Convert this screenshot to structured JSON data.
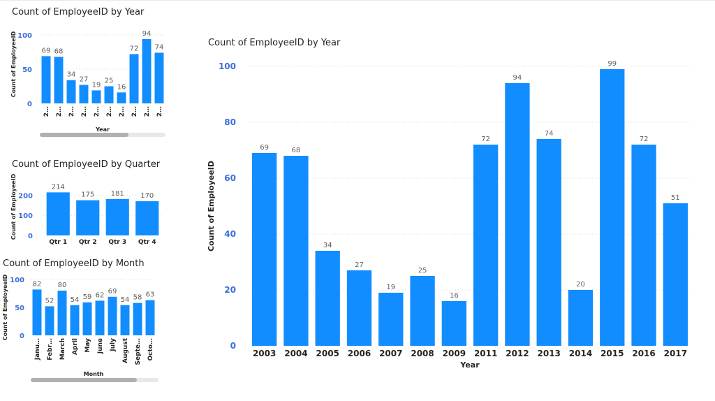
{
  "chart_data": [
    {
      "type": "bar",
      "title": "Count of EmployeeID by Year",
      "xlabel": "Year",
      "ylabel": "Count of EmployeeID",
      "ylim": [
        0,
        100
      ],
      "yticks": [
        0,
        50,
        100
      ],
      "categories": [
        "2…",
        "2…",
        "2…",
        "2…",
        "2…",
        "2…",
        "2…",
        "2…",
        "2…",
        "2…"
      ],
      "values": [
        69,
        68,
        34,
        27,
        19,
        25,
        16,
        72,
        94,
        74
      ],
      "grid": true,
      "scrollbar_position": 0.7
    },
    {
      "type": "bar",
      "title": "Count of EmployeeID by Quarter",
      "xlabel": "",
      "ylabel": "Count of EmployeeID",
      "ylim": [
        0,
        250
      ],
      "yticks": [
        0,
        100,
        200
      ],
      "categories": [
        "Qtr 1",
        "Qtr 2",
        "Qtr 3",
        "Qtr 4"
      ],
      "values": [
        214,
        175,
        181,
        170
      ],
      "grid": true
    },
    {
      "type": "bar",
      "title": "Count of EmployeeID by Month",
      "xlabel": "Month",
      "ylabel": "Count of EmployeeID",
      "ylim": [
        0,
        100
      ],
      "yticks": [
        0,
        50,
        100
      ],
      "categories": [
        "Janu…",
        "Febr…",
        "March",
        "April",
        "May",
        "June",
        "July",
        "August",
        "Septe…",
        "Octo…"
      ],
      "values": [
        82,
        52,
        80,
        54,
        59,
        62,
        69,
        54,
        58,
        63
      ],
      "grid": true,
      "scrollbar_position": 0.83
    },
    {
      "type": "bar",
      "title": "Count of EmployeeID by Year",
      "xlabel": "Year",
      "ylabel": "Count of EmployeeID",
      "ylim": [
        0,
        100
      ],
      "yticks": [
        0,
        20,
        40,
        60,
        80,
        100
      ],
      "categories": [
        "2003",
        "2004",
        "2005",
        "2006",
        "2007",
        "2008",
        "2009",
        "2011",
        "2012",
        "2013",
        "2014",
        "2015",
        "2016",
        "2017"
      ],
      "values": [
        69,
        68,
        34,
        27,
        19,
        25,
        16,
        72,
        94,
        74,
        20,
        99,
        72,
        51
      ],
      "grid": true
    }
  ]
}
